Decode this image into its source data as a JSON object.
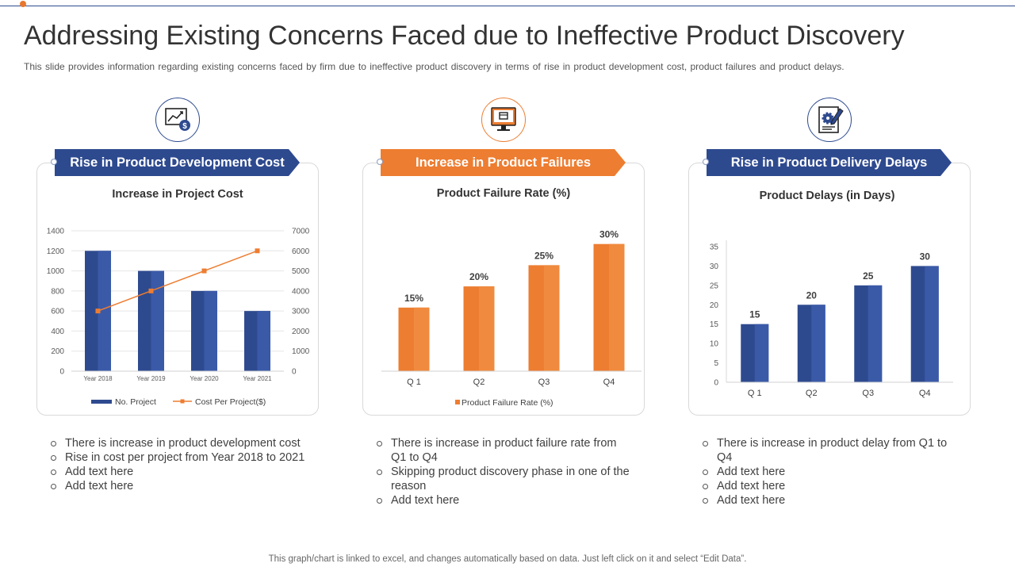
{
  "title": "Addressing Existing Concerns Faced due to Ineffective Product Discovery",
  "subtitle": "This slide provides  information  regarding  existing concerns  faced  by firm  due to ineffective  product  discovery  in terms of rise in product development  cost, product failures  and product delays.",
  "colors": {
    "blue": "#2e4a8f",
    "blue_light": "#3a5aa8",
    "orange": "#ed7d31",
    "orange_light": "#f08a3e"
  },
  "panels": [
    {
      "banner": "Rise in Product Development Cost",
      "icon": "chart-money-icon",
      "bullets": [
        "There is increase in product development cost",
        "Rise in cost per project from Year 2018 to 2021",
        "Add text here",
        "Add text here"
      ]
    },
    {
      "banner": "Increase in Product Failures",
      "icon": "monitor-cart-icon",
      "bullets": [
        "There is increase in product failure rate from Q1 to Q4",
        "Skipping product discovery phase in one of the reason",
        "Add text here"
      ]
    },
    {
      "banner": "Rise in Product Delivery Delays",
      "icon": "document-gear-icon",
      "bullets": [
        "There is increase in product delay from Q1 to Q4",
        "Add text here",
        "Add text here",
        "Add text here"
      ]
    }
  ],
  "chart_data": [
    {
      "type": "bar",
      "title": "Increase in Project Cost",
      "categories": [
        "Year 2018",
        "Year 2019",
        "Year 2020",
        "Year 2021"
      ],
      "series": [
        {
          "name": "No. Project",
          "type": "bar",
          "axis": "left",
          "values": [
            1200,
            1000,
            800,
            600
          ]
        },
        {
          "name": "Cost Per Project($)",
          "type": "line",
          "axis": "right",
          "values": [
            3000,
            4000,
            5000,
            6000
          ]
        }
      ],
      "ylim": [
        0,
        1400
      ],
      "yticks": [
        0,
        200,
        400,
        600,
        800,
        1000,
        1200,
        1400
      ],
      "y2lim": [
        0,
        7000
      ],
      "y2ticks": [
        0,
        1000,
        2000,
        3000,
        4000,
        5000,
        6000,
        7000
      ],
      "legend": "bottom"
    },
    {
      "type": "bar",
      "title": "Product Failure Rate (%)",
      "categories": [
        "Q 1",
        "Q2",
        "Q3",
        "Q4"
      ],
      "series": [
        {
          "name": "Product Failure Rate (%)",
          "values": [
            15,
            20,
            25,
            30
          ]
        }
      ],
      "data_labels": [
        "15%",
        "20%",
        "25%",
        "30%"
      ],
      "ylim": [
        0,
        32
      ],
      "legend": "bottom"
    },
    {
      "type": "bar",
      "title": "Product Delays (in Days)",
      "categories": [
        "Q 1",
        "Q2",
        "Q3",
        "Q4"
      ],
      "series": [
        {
          "name": "Product Delays",
          "values": [
            15,
            20,
            25,
            30
          ]
        }
      ],
      "data_labels": [
        "15",
        "20",
        "25",
        "30"
      ],
      "ylim": [
        0,
        35
      ],
      "yticks": [
        0,
        5,
        10,
        15,
        20,
        25,
        30,
        35
      ]
    }
  ],
  "footer": "This graph/chart is linked to excel,  and changes automatically based on data. Just left click on it and select “Edit Data”."
}
